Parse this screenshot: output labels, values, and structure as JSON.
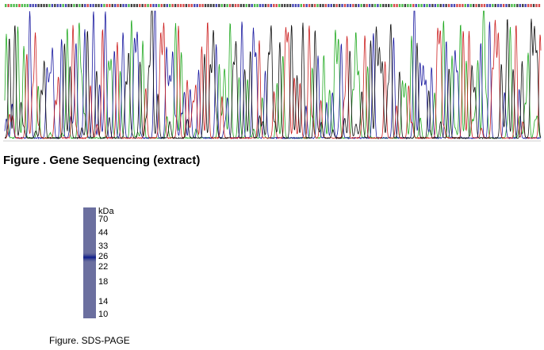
{
  "sequencing_figure": {
    "caption": "Figure . Gene Sequencing (extract)"
  },
  "sds_page_figure": {
    "caption": "Figure. SDS-PAGE",
    "unit": "kDa",
    "markers": [
      "70",
      "44",
      "33",
      "26",
      "22",
      "18",
      "14",
      "10"
    ]
  }
}
